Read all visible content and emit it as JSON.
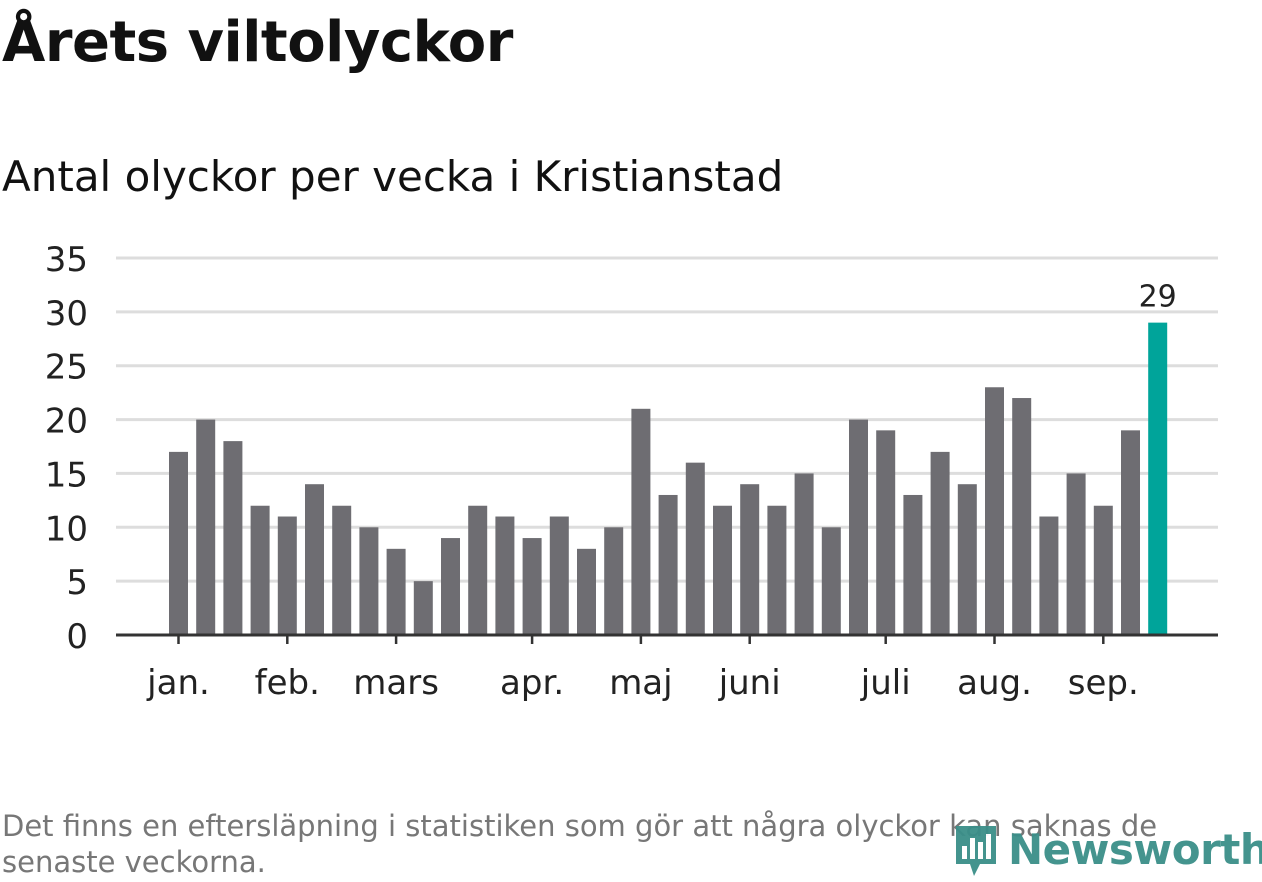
{
  "header": {
    "title": "Årets viltolyckor",
    "subtitle": "Antal olyckor per vecka i Kristianstad"
  },
  "footnote": "Det finns en eftersläpning i statistiken som gör att några olyckor kan saknas de senaste veckorna.",
  "brand": {
    "name": "Newsworthy",
    "icon": "newsworthy-logo-icon",
    "color": "#3a8f89"
  },
  "chart_data": {
    "type": "bar",
    "title": "Årets viltolyckor",
    "subtitle": "Antal olyckor per vecka i Kristianstad",
    "xlabel": "",
    "ylabel": "",
    "ylim": [
      0,
      35
    ],
    "yticks": [
      0,
      5,
      10,
      15,
      20,
      25,
      30,
      35
    ],
    "grid": true,
    "colors": {
      "bar": "#6e6d72",
      "highlight": "#00a49a",
      "grid": "#dddddd",
      "axis": "#333333"
    },
    "month_ticks": [
      {
        "label": "jan.",
        "week": 1
      },
      {
        "label": "feb.",
        "week": 5
      },
      {
        "label": "mars",
        "week": 9
      },
      {
        "label": "apr.",
        "week": 14
      },
      {
        "label": "maj",
        "week": 18
      },
      {
        "label": "juni",
        "week": 22
      },
      {
        "label": "juli",
        "week": 27
      },
      {
        "label": "aug.",
        "week": 31
      },
      {
        "label": "sep.",
        "week": 35
      }
    ],
    "weeks": [
      1,
      2,
      3,
      4,
      5,
      6,
      7,
      8,
      9,
      10,
      11,
      12,
      13,
      14,
      15,
      16,
      17,
      18,
      19,
      20,
      21,
      22,
      23,
      24,
      25,
      26,
      27,
      28,
      29,
      30,
      31,
      32,
      33,
      34,
      35,
      36,
      37
    ],
    "values": [
      17,
      20,
      18,
      12,
      11,
      14,
      12,
      10,
      8,
      5,
      9,
      12,
      11,
      9,
      11,
      8,
      10,
      21,
      13,
      16,
      12,
      14,
      12,
      15,
      10,
      20,
      19,
      13,
      17,
      14,
      23,
      22,
      11,
      15,
      12,
      19,
      29
    ],
    "highlight_index": 36,
    "annotations": [
      {
        "text": "29",
        "index": 36
      }
    ]
  }
}
